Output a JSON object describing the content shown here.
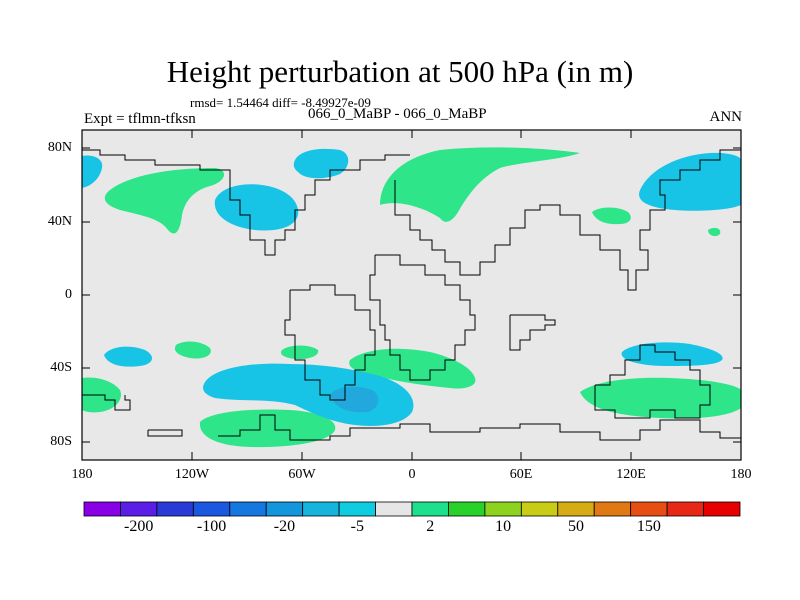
{
  "title": "Height perturbation at 500 hPa (in m)",
  "stats": "rmsd= 1.54464 diff= -8.49927e-09",
  "experiment": "Expt = tflmn-tfksn",
  "cases": "066_0_MaBP - 066_0_MaBP",
  "season": "ANN",
  "lat_labels": [
    "80N",
    "40N",
    "0",
    "40S",
    "80S"
  ],
  "lon_labels": [
    "180",
    "120W",
    "60W",
    "0",
    "60E",
    "120E",
    "180"
  ],
  "colorbar": {
    "colors": [
      "#8a00e6",
      "#5b1ee6",
      "#2a3ad6",
      "#1a58e0",
      "#1478e0",
      "#1496dc",
      "#14b4dc",
      "#10cce0",
      "#e6e6e6",
      "#1ee08c",
      "#28d22a",
      "#8cd21e",
      "#c8cc14",
      "#d6ac14",
      "#e07814",
      "#e64e14",
      "#e62814",
      "#e60000"
    ],
    "labels": [
      "-200",
      "-100",
      "-20",
      "-5",
      "2",
      "10",
      "50",
      "150"
    ]
  },
  "fill_colors": {
    "positive": "#2ee58a",
    "negative": "#18c4e6",
    "strong_negative": "#22a8dc",
    "background": "#e8e8e8"
  }
}
